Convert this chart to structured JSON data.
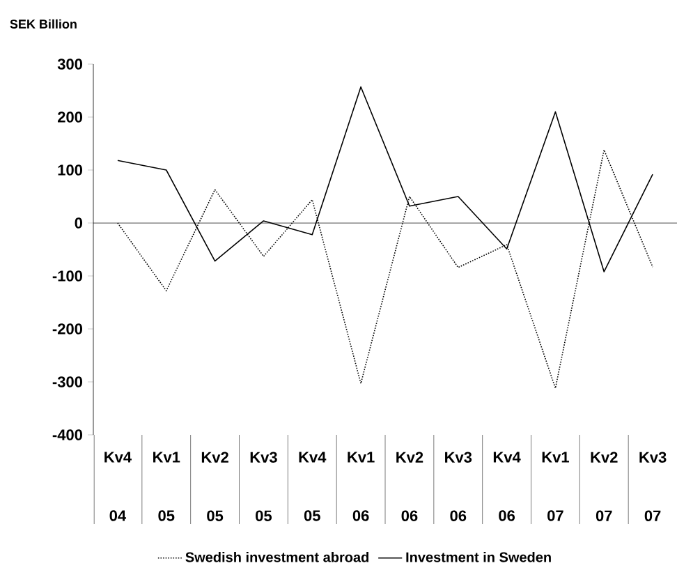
{
  "chart_data": {
    "type": "line",
    "ylabel": "SEK Billion",
    "categories": [
      "Kv4 04",
      "Kv1 05",
      "Kv2 05",
      "Kv3 05",
      "Kv4 05",
      "Kv1 06",
      "Kv2 06",
      "Kv3 06",
      "Kv4 06",
      "Kv1 07",
      "Kv2 07",
      "Kv3 07"
    ],
    "series": [
      {
        "name": "Swedish investment abroad",
        "color": "#000000",
        "line_style": "dotted",
        "values": [
          0,
          -128,
          63,
          -63,
          44,
          -303,
          50,
          -84,
          -41,
          -312,
          138,
          -83
        ]
      },
      {
        "name": "Investment in Sweden",
        "color": "#000000",
        "line_style": "solid",
        "values": [
          118,
          100,
          -72,
          4,
          -22,
          257,
          32,
          50,
          -49,
          210,
          -92,
          92
        ]
      }
    ],
    "ylim": [
      -400,
      300
    ],
    "yticks": [
      -400,
      -300,
      -200,
      -100,
      0,
      100,
      200,
      300
    ],
    "marker": "none",
    "legend": "bottom"
  }
}
